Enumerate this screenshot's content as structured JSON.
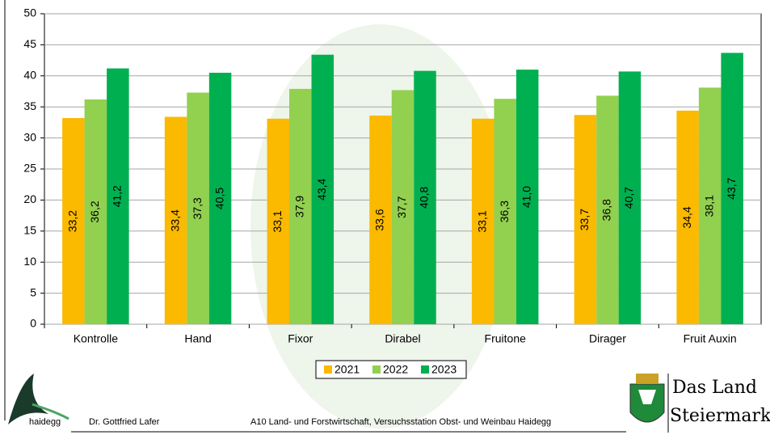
{
  "chart_data": {
    "type": "bar",
    "categories": [
      "Kontrolle",
      "Hand",
      "Fixor",
      "Dirabel",
      "Fruitone",
      "Dirager",
      "Fruit Auxin"
    ],
    "series": [
      {
        "name": "2021",
        "color": "#fbb900",
        "values": [
          33.2,
          33.4,
          33.1,
          33.6,
          33.1,
          33.7,
          34.4
        ],
        "value_labels": [
          "33,2",
          "33,4",
          "33,1",
          "33,6",
          "33,1",
          "33,7",
          "34,4"
        ]
      },
      {
        "name": "2022",
        "color": "#92d050",
        "values": [
          36.2,
          37.3,
          37.9,
          37.7,
          36.3,
          36.8,
          38.1
        ],
        "value_labels": [
          "36,2",
          "37,3",
          "37,9",
          "37,7",
          "36,3",
          "36,8",
          "38,1"
        ]
      },
      {
        "name": "2023",
        "color": "#00b050",
        "values": [
          41.2,
          40.5,
          43.4,
          40.8,
          41.0,
          40.7,
          43.7
        ],
        "value_labels": [
          "41,2",
          "40,5",
          "43,4",
          "40,8",
          "41,0",
          "40,7",
          "43,7"
        ]
      }
    ],
    "ylim": [
      0,
      50
    ],
    "yticks": [
      0,
      5,
      10,
      15,
      20,
      25,
      30,
      35,
      40,
      45,
      50
    ],
    "grid": true
  },
  "footer": {
    "logo_text": "haidegg",
    "author": "Dr. Gottfried Lafer",
    "institution": "A10 Land- und Forstwirtschaft, Versuchsstation Obst- und Weinbau Haidegg",
    "brand_line1": "Das Land",
    "brand_line2": "Steiermark"
  }
}
